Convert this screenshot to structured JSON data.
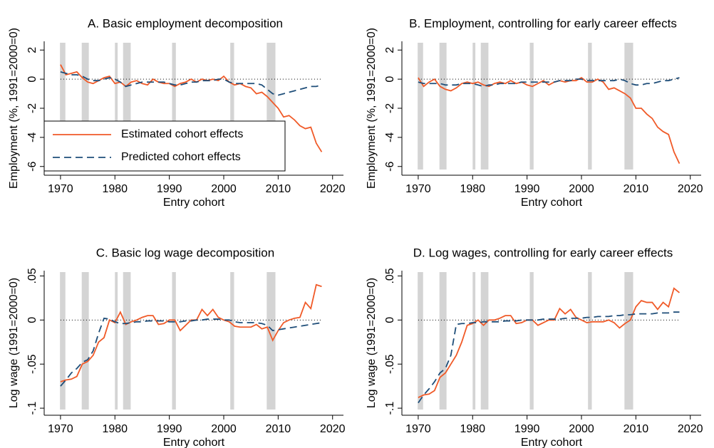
{
  "chart_data": [
    {
      "type": "line",
      "title": "A. Basic employment decomposition",
      "x_label": "Entry cohort",
      "y_label": "Employment (%, 1991=2000=0)",
      "x": [
        1970,
        1971,
        1972,
        1973,
        1974,
        1975,
        1976,
        1977,
        1978,
        1979,
        1980,
        1981,
        1982,
        1983,
        1984,
        1985,
        1986,
        1987,
        1988,
        1989,
        1990,
        1991,
        1992,
        1993,
        1994,
        1995,
        1996,
        1997,
        1998,
        1999,
        2000,
        2001,
        2002,
        2003,
        2004,
        2005,
        2006,
        2007,
        2008,
        2009,
        2010,
        2011,
        2012,
        2013,
        2014,
        2015,
        2016,
        2017,
        2018
      ],
      "series": [
        {
          "name": "Estimated cohort effects",
          "color": "#f05a28",
          "dash": "solid",
          "values": [
            1.0,
            0.3,
            0.4,
            0.5,
            0.1,
            -0.2,
            -0.3,
            -0.1,
            0.1,
            0.2,
            -0.3,
            -0.2,
            -0.5,
            -0.2,
            -0.1,
            -0.3,
            -0.4,
            0.0,
            -0.2,
            -0.3,
            -0.3,
            -0.5,
            -0.3,
            -0.2,
            0.0,
            -0.2,
            0.0,
            -0.1,
            0.0,
            -0.1,
            0.2,
            -0.2,
            -0.4,
            -0.3,
            -0.5,
            -0.6,
            -1.0,
            -0.9,
            -1.2,
            -1.6,
            -2.0,
            -2.6,
            -2.5,
            -2.8,
            -3.2,
            -3.4,
            -3.3,
            -4.4,
            -5.0
          ]
        },
        {
          "name": "Predicted cohort effects",
          "color": "#1f4e79",
          "dash": "dashed",
          "values": [
            0.5,
            0.4,
            0.3,
            0.3,
            0.2,
            0.0,
            -0.1,
            -0.1,
            0.0,
            0.1,
            0.0,
            -0.2,
            -0.5,
            -0.4,
            -0.3,
            -0.2,
            -0.2,
            -0.2,
            -0.2,
            -0.2,
            -0.3,
            -0.4,
            -0.4,
            -0.3,
            -0.2,
            -0.2,
            -0.1,
            -0.1,
            -0.1,
            0.0,
            0.0,
            -0.2,
            -0.3,
            -0.3,
            -0.3,
            -0.3,
            -0.3,
            -0.4,
            -0.7,
            -1.0,
            -1.1,
            -1.0,
            -0.9,
            -0.8,
            -0.7,
            -0.6,
            -0.5,
            -0.5,
            -0.4
          ]
        }
      ],
      "shaded_periods": [
        [
          1969.9,
          1970.9
        ],
        [
          1973.9,
          1975.2
        ],
        [
          1980.0,
          1980.5
        ],
        [
          1981.5,
          1982.9
        ],
        [
          1990.5,
          1991.2
        ],
        [
          2001.2,
          2001.9
        ],
        [
          2007.9,
          2009.5
        ]
      ],
      "hline": 0,
      "legend": "lower left",
      "xlim": [
        1967,
        2022
      ],
      "xticks": [
        1970,
        1980,
        1990,
        2000,
        2010,
        2020
      ],
      "ylim": [
        -6.6,
        2.6
      ],
      "yticks": [
        -6,
        -4,
        -2,
        0,
        2
      ]
    },
    {
      "type": "line",
      "title": "B. Employment, controlling for early career effects",
      "x_label": "Entry cohort",
      "y_label": "Employment (%, 1991=2000=0)",
      "x": [
        1970,
        1971,
        1972,
        1973,
        1974,
        1975,
        1976,
        1977,
        1978,
        1979,
        1980,
        1981,
        1982,
        1983,
        1984,
        1985,
        1986,
        1987,
        1988,
        1989,
        1990,
        1991,
        1992,
        1993,
        1994,
        1995,
        1996,
        1997,
        1998,
        1999,
        2000,
        2001,
        2002,
        2003,
        2004,
        2005,
        2006,
        2007,
        2008,
        2009,
        2010,
        2011,
        2012,
        2013,
        2014,
        2015,
        2016,
        2017,
        2018
      ],
      "series": [
        {
          "color": "#f05a28",
          "dash": "solid",
          "values": [
            0.1,
            -0.5,
            -0.2,
            0.0,
            -0.5,
            -0.7,
            -0.8,
            -0.6,
            -0.3,
            -0.2,
            -0.3,
            -0.2,
            -0.4,
            -0.5,
            -0.3,
            -0.2,
            -0.3,
            -0.1,
            -0.3,
            -0.2,
            -0.4,
            -0.5,
            -0.3,
            -0.1,
            -0.4,
            -0.2,
            -0.1,
            -0.2,
            -0.1,
            -0.1,
            0.1,
            -0.2,
            -0.2,
            0.0,
            -0.2,
            -0.7,
            -0.6,
            -0.8,
            -1.0,
            -1.3,
            -2.0,
            -2.0,
            -2.4,
            -2.7,
            -3.3,
            -3.6,
            -3.8,
            -5.0,
            -5.8
          ]
        },
        {
          "color": "#1f4e79",
          "dash": "dashed",
          "values": [
            -0.2,
            -0.3,
            -0.3,
            -0.3,
            -0.3,
            -0.4,
            -0.4,
            -0.4,
            -0.3,
            -0.3,
            -0.3,
            -0.4,
            -0.5,
            -0.4,
            -0.4,
            -0.3,
            -0.3,
            -0.3,
            -0.3,
            -0.2,
            -0.2,
            -0.2,
            -0.2,
            -0.2,
            -0.2,
            -0.2,
            -0.1,
            -0.1,
            -0.1,
            0.0,
            0.0,
            -0.1,
            -0.1,
            -0.1,
            -0.1,
            -0.1,
            -0.1,
            0.0,
            -0.1,
            -0.3,
            -0.4,
            -0.4,
            -0.3,
            -0.3,
            -0.2,
            -0.1,
            -0.1,
            0.0,
            0.1
          ]
        }
      ],
      "shaded_periods": [
        [
          1969.9,
          1970.9
        ],
        [
          1973.9,
          1975.2
        ],
        [
          1980.0,
          1980.5
        ],
        [
          1981.5,
          1982.9
        ],
        [
          1990.5,
          1991.2
        ],
        [
          2001.2,
          2001.9
        ],
        [
          2007.9,
          2009.5
        ]
      ],
      "hline": 0,
      "xlim": [
        1967,
        2022
      ],
      "xticks": [
        1970,
        1980,
        1990,
        2000,
        2010,
        2020
      ],
      "ylim": [
        -6.6,
        2.6
      ],
      "yticks": [
        -6,
        -4,
        -2,
        0,
        2
      ]
    },
    {
      "type": "line",
      "title": "C. Basic log wage decomposition",
      "x_label": "Entry cohort",
      "y_label": "Log wage (1991=2000=0)",
      "x": [
        1970,
        1971,
        1972,
        1973,
        1974,
        1975,
        1976,
        1977,
        1978,
        1979,
        1980,
        1981,
        1982,
        1983,
        1984,
        1985,
        1986,
        1987,
        1988,
        1989,
        1990,
        1991,
        1992,
        1993,
        1994,
        1995,
        1996,
        1997,
        1998,
        1999,
        2000,
        2001,
        2002,
        2003,
        2004,
        2005,
        2006,
        2007,
        2008,
        2009,
        2010,
        2011,
        2012,
        2013,
        2014,
        2015,
        2016,
        2017,
        2018
      ],
      "series": [
        {
          "color": "#f05a28",
          "dash": "solid",
          "values": [
            -0.07,
            -0.068,
            -0.067,
            -0.064,
            -0.05,
            -0.047,
            -0.04,
            -0.025,
            -0.02,
            0.0,
            -0.003,
            0.009,
            -0.005,
            -0.002,
            0.0,
            0.003,
            0.005,
            0.005,
            -0.005,
            -0.004,
            0.0,
            0.0,
            -0.012,
            -0.006,
            0.0,
            0.0,
            0.012,
            0.005,
            0.012,
            0.003,
            0.0,
            -0.002,
            -0.007,
            -0.008,
            -0.008,
            -0.008,
            -0.005,
            -0.01,
            -0.008,
            -0.023,
            -0.012,
            -0.003,
            0.0,
            0.002,
            0.003,
            0.02,
            0.013,
            0.04,
            0.038
          ]
        },
        {
          "color": "#1f4e79",
          "dash": "dashed",
          "values": [
            -0.075,
            -0.068,
            -0.06,
            -0.055,
            -0.048,
            -0.045,
            -0.035,
            -0.015,
            0.002,
            0.001,
            -0.002,
            -0.004,
            -0.004,
            -0.003,
            -0.002,
            -0.002,
            -0.001,
            -0.001,
            -0.001,
            -0.001,
            -0.002,
            -0.002,
            -0.002,
            -0.001,
            -0.001,
            0.0,
            0.0,
            0.001,
            0.001,
            0.001,
            0.0,
            0.0,
            -0.002,
            -0.003,
            -0.003,
            -0.003,
            -0.003,
            -0.004,
            -0.006,
            -0.012,
            -0.011,
            -0.01,
            -0.009,
            -0.008,
            -0.007,
            -0.006,
            -0.005,
            -0.004,
            -0.003
          ]
        }
      ],
      "shaded_periods": [
        [
          1969.9,
          1970.9
        ],
        [
          1973.9,
          1975.2
        ],
        [
          1980.0,
          1980.5
        ],
        [
          1981.5,
          1982.9
        ],
        [
          1990.5,
          1991.2
        ],
        [
          2001.2,
          2001.9
        ],
        [
          2007.9,
          2009.5
        ]
      ],
      "hline": 0,
      "xlim": [
        1967,
        2022
      ],
      "xticks": [
        1970,
        1980,
        1990,
        2000,
        2010,
        2020
      ],
      "ylim": [
        -0.108,
        0.056
      ],
      "yticks": [
        {
          "value": -0.1,
          "label": "-.1"
        },
        {
          "value": -0.05,
          "label": "-.05"
        },
        0,
        {
          "value": 0.05,
          "label": ".05"
        }
      ]
    },
    {
      "type": "line",
      "title": "D. Log wages, controlling for early career effects",
      "x_label": "Entry cohort",
      "y_label": "Log wage (1991=2000=0)",
      "x": [
        1970,
        1971,
        1972,
        1973,
        1974,
        1975,
        1976,
        1977,
        1978,
        1979,
        1980,
        1981,
        1982,
        1983,
        1984,
        1985,
        1986,
        1987,
        1988,
        1989,
        1990,
        1991,
        1992,
        1993,
        1994,
        1995,
        1996,
        1997,
        1998,
        1999,
        2000,
        2001,
        2002,
        2003,
        2004,
        2005,
        2006,
        2007,
        2008,
        2009,
        2010,
        2011,
        2012,
        2013,
        2014,
        2015,
        2016,
        2017,
        2018
      ],
      "series": [
        {
          "color": "#f05a28",
          "dash": "solid",
          "values": [
            -0.088,
            -0.085,
            -0.084,
            -0.08,
            -0.065,
            -0.06,
            -0.05,
            -0.04,
            -0.025,
            -0.006,
            -0.004,
            0.0,
            -0.006,
            0.0,
            0.0,
            0.002,
            0.005,
            0.005,
            -0.004,
            -0.003,
            0.0,
            0.0,
            -0.006,
            -0.003,
            0.0,
            0.0,
            0.013,
            0.007,
            0.012,
            0.003,
            0.0,
            -0.003,
            -0.002,
            -0.002,
            -0.002,
            0.0,
            -0.003,
            -0.009,
            -0.004,
            0.0,
            0.015,
            0.022,
            0.02,
            0.02,
            0.012,
            0.02,
            0.015,
            0.036,
            0.031
          ]
        },
        {
          "color": "#1f4e79",
          "dash": "dashed",
          "values": [
            -0.094,
            -0.085,
            -0.078,
            -0.07,
            -0.06,
            -0.055,
            -0.04,
            -0.005,
            -0.004,
            -0.004,
            -0.003,
            -0.003,
            -0.002,
            -0.002,
            -0.002,
            -0.002,
            -0.001,
            -0.001,
            -0.001,
            0.0,
            0.0,
            0.0,
            0.0,
            0.001,
            0.001,
            0.001,
            0.001,
            0.002,
            0.002,
            0.002,
            0.002,
            0.003,
            0.003,
            0.004,
            0.004,
            0.004,
            0.005,
            0.005,
            0.006,
            0.006,
            0.007,
            0.007,
            0.007,
            0.007,
            0.008,
            0.008,
            0.008,
            0.009,
            0.009
          ]
        }
      ],
      "shaded_periods": [
        [
          1969.9,
          1970.9
        ],
        [
          1973.9,
          1975.2
        ],
        [
          1980.0,
          1980.5
        ],
        [
          1981.5,
          1982.9
        ],
        [
          1990.5,
          1991.2
        ],
        [
          2001.2,
          2001.9
        ],
        [
          2007.9,
          2009.5
        ]
      ],
      "hline": 0,
      "xlim": [
        1967,
        2022
      ],
      "xticks": [
        1970,
        1980,
        1990,
        2000,
        2010,
        2020
      ],
      "ylim": [
        -0.108,
        0.056
      ],
      "yticks": [
        {
          "value": -0.1,
          "label": "-.1"
        },
        {
          "value": -0.05,
          "label": "-.05"
        },
        0,
        {
          "value": 0.05,
          "label": ".05"
        }
      ]
    }
  ]
}
